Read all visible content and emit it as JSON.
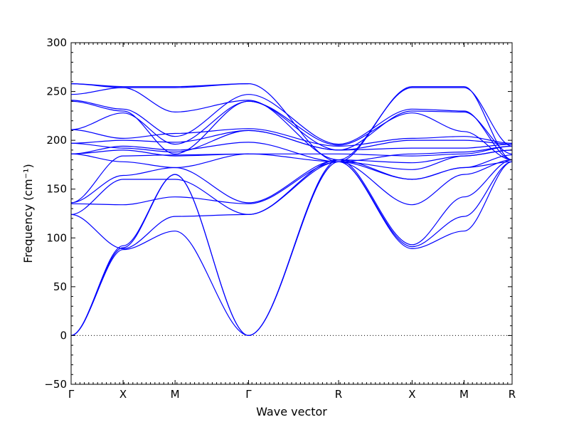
{
  "chart_data": {
    "type": "line",
    "title": "",
    "xlabel": "Wave vector",
    "ylabel": "Frequency (cm⁻¹)",
    "ylim": [
      -50,
      300
    ],
    "yticks": [
      -50,
      0,
      50,
      100,
      150,
      200,
      250,
      300
    ],
    "xlim": [
      0,
      8.485
    ],
    "x_ticks": [
      {
        "x": 0.0,
        "label": "Γ"
      },
      {
        "x": 1.0,
        "label": "X"
      },
      {
        "x": 2.0,
        "label": "M"
      },
      {
        "x": 3.414,
        "label": "Γ"
      },
      {
        "x": 5.146,
        "label": "R"
      },
      {
        "x": 6.561,
        "label": "X"
      },
      {
        "x": 7.561,
        "label": "M"
      },
      {
        "x": 8.561,
        "label": "R"
      }
    ],
    "zero_line": true,
    "line_color": "#0000ff",
    "series": [
      {
        "x": [
          0,
          1,
          2,
          3.414
        ],
        "values": [
          0,
          88,
          107,
          0
        ]
      },
      {
        "x": [
          0,
          1,
          2,
          3.414
        ],
        "values": [
          0,
          90,
          165,
          0
        ]
      },
      {
        "x": [
          0,
          1,
          2,
          3.414
        ],
        "values": [
          0,
          92,
          165,
          0
        ]
      },
      {
        "x": [
          0,
          1,
          2,
          3.414
        ],
        "values": [
          124,
          89,
          122,
          124
        ]
      },
      {
        "x": [
          0,
          1,
          2,
          3.414
        ],
        "values": [
          124,
          160,
          160,
          124
        ]
      },
      {
        "x": [
          0,
          1,
          2,
          3.414
        ],
        "values": [
          135,
          134,
          142,
          135
        ]
      },
      {
        "x": [
          0,
          1,
          2,
          3.414
        ],
        "values": [
          136,
          164,
          172,
          136
        ]
      },
      {
        "x": [
          0,
          1,
          2,
          3.414
        ],
        "values": [
          136,
          184,
          185,
          186
        ]
      },
      {
        "x": [
          0,
          1,
          2,
          3.414
        ],
        "values": [
          186,
          178,
          172,
          186
        ]
      },
      {
        "x": [
          0,
          1,
          2,
          3.414
        ],
        "values": [
          186,
          190,
          184,
          186
        ]
      },
      {
        "x": [
          0,
          1,
          2,
          3.414
        ],
        "values": [
          186,
          194,
          190,
          198
        ]
      },
      {
        "x": [
          0,
          1,
          2,
          3.414
        ],
        "values": [
          197,
          200,
          198,
          210
        ]
      },
      {
        "x": [
          0,
          1,
          2,
          3.414
        ],
        "values": [
          197,
          192,
          188,
          210
        ]
      },
      {
        "x": [
          0,
          1,
          2,
          3.414
        ],
        "values": [
          211,
          202,
          207,
          212
        ]
      },
      {
        "x": [
          0,
          1,
          2,
          3.414
        ],
        "values": [
          211,
          228,
          196,
          240
        ]
      },
      {
        "x": [
          0,
          1,
          2,
          3.414
        ],
        "values": [
          240,
          230,
          186,
          240
        ]
      },
      {
        "x": [
          0,
          1,
          2,
          3.414
        ],
        "values": [
          241,
          232,
          204,
          247
        ]
      },
      {
        "x": [
          0,
          1,
          2,
          3.414
        ],
        "values": [
          247,
          254,
          229,
          241
        ]
      },
      {
        "x": [
          0,
          1,
          2,
          3.414
        ],
        "values": [
          258,
          255,
          255,
          258
        ]
      },
      {
        "x": [
          0,
          1,
          2,
          3.414
        ],
        "values": [
          258,
          254,
          254,
          258
        ]
      },
      {
        "x": [
          3.414,
          5.146,
          6.561,
          7.561,
          8.561
        ],
        "values": [
          0,
          178,
          89,
          107,
          178
        ]
      },
      {
        "x": [
          3.414,
          5.146,
          6.561,
          7.561,
          8.561
        ],
        "values": [
          0,
          178,
          91,
          122,
          178
        ]
      },
      {
        "x": [
          3.414,
          5.146,
          6.561,
          7.561,
          8.561
        ],
        "values": [
          0,
          180,
          93,
          142,
          180
        ]
      },
      {
        "x": [
          3.414,
          5.146,
          6.561,
          7.561,
          8.561
        ],
        "values": [
          124,
          178,
          134,
          165,
          180
        ]
      },
      {
        "x": [
          3.414,
          5.146,
          6.561,
          7.561,
          8.561
        ],
        "values": [
          124,
          180,
          160,
          172,
          178
        ]
      },
      {
        "x": [
          3.414,
          5.146,
          6.561,
          7.561,
          8.561
        ],
        "values": [
          135,
          178,
          160,
          172,
          185
        ]
      },
      {
        "x": [
          3.414,
          5.146,
          6.561,
          7.561,
          8.561
        ],
        "values": [
          136,
          180,
          177,
          184,
          190
        ]
      },
      {
        "x": [
          3.414,
          5.146,
          6.561,
          7.561,
          8.561
        ],
        "values": [
          186,
          178,
          170,
          184,
          190
        ]
      },
      {
        "x": [
          3.414,
          5.146,
          6.561,
          7.561,
          8.561
        ],
        "values": [
          186,
          186,
          184,
          186,
          194
        ]
      },
      {
        "x": [
          3.414,
          5.146,
          6.561,
          7.561,
          8.561
        ],
        "values": [
          198,
          178,
          186,
          188,
          194
        ]
      },
      {
        "x": [
          3.414,
          5.146,
          6.561,
          7.561,
          8.561
        ],
        "values": [
          210,
          190,
          192,
          192,
          196
        ]
      },
      {
        "x": [
          3.414,
          5.146,
          6.561,
          7.561,
          8.561
        ],
        "values": [
          210,
          190,
          200,
          200,
          196
        ]
      },
      {
        "x": [
          3.414,
          5.146,
          6.561,
          7.561,
          8.561
        ],
        "values": [
          212,
          194,
          202,
          204,
          197
        ]
      },
      {
        "x": [
          3.414,
          5.146,
          6.561,
          7.561,
          8.561
        ],
        "values": [
          240,
          195,
          228,
          209,
          180
        ]
      },
      {
        "x": [
          3.414,
          5.146,
          6.561,
          7.561,
          8.561
        ],
        "values": [
          240,
          190,
          230,
          229,
          186
        ]
      },
      {
        "x": [
          3.414,
          5.146,
          6.561,
          7.561,
          8.561
        ],
        "values": [
          247,
          196,
          232,
          230,
          180
        ]
      },
      {
        "x": [
          3.414,
          5.146,
          6.561,
          7.561,
          8.561
        ],
        "values": [
          241,
          180,
          254,
          254,
          194
        ]
      },
      {
        "x": [
          3.414,
          5.146,
          6.561,
          7.561,
          8.561
        ],
        "values": [
          258,
          178,
          255,
          255,
          180
        ]
      }
    ]
  }
}
